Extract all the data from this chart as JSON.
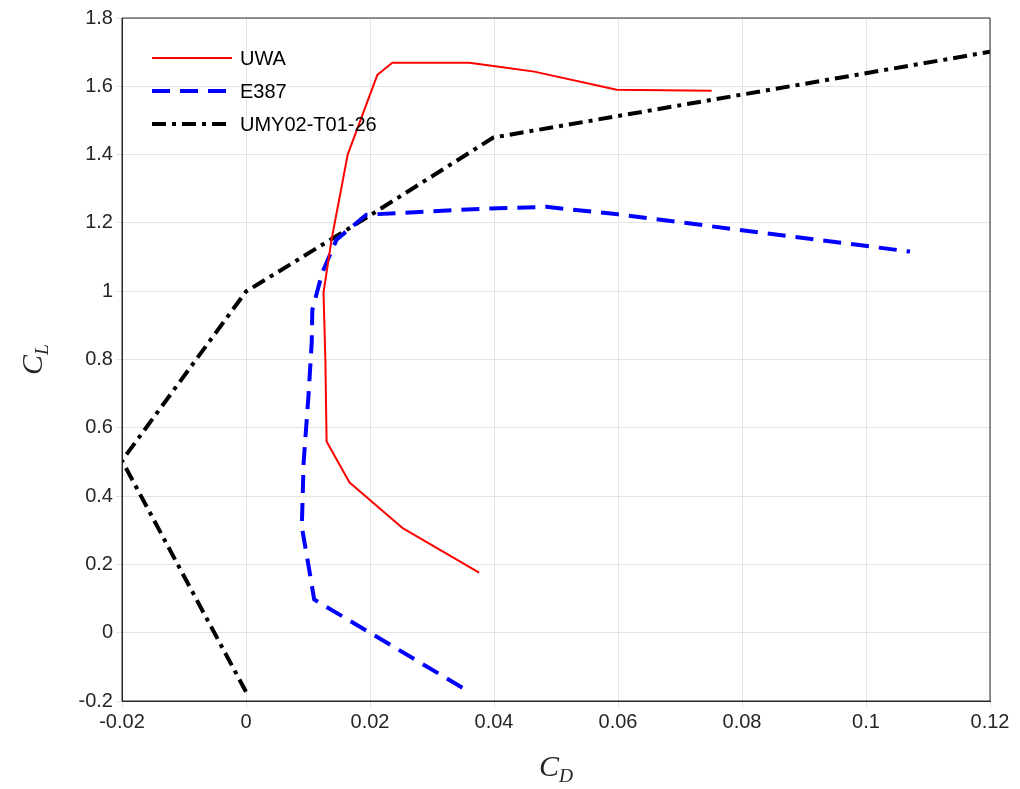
{
  "chart_data": {
    "type": "line",
    "xlabel": "C$_{D}$",
    "ylabel": "C$_{L}$",
    "xlim": [
      -0.02,
      0.12
    ],
    "xticks": [
      -0.02,
      0,
      0.02,
      0.04,
      0.06,
      0.08,
      0.1,
      0.12
    ],
    "ylim": [
      -0.2,
      1.8
    ],
    "yticks": [
      -0.2,
      0,
      0.2,
      0.4,
      0.6,
      0.8,
      1,
      1.2,
      1.4,
      1.6,
      1.8
    ],
    "grid": true,
    "legend": "top left",
    "marker": "none",
    "series": [
      {
        "name": "UWA",
        "color": "#ff0000",
        "line_style": "solid",
        "x": [
          0.0376,
          0.0252,
          0.0167,
          0.013,
          0.0128,
          0.0125,
          0.0138,
          0.0164,
          0.0212,
          0.0236,
          0.029,
          0.036,
          0.0465,
          0.0598,
          0.0751
        ],
        "values": [
          0.176,
          0.307,
          0.44,
          0.56,
          0.8,
          0.996,
          1.151,
          1.4,
          1.634,
          1.669,
          1.669,
          1.669,
          1.643,
          1.59,
          1.587
        ]
      },
      {
        "name": "E387",
        "color": "#0000ff",
        "line_style": "dashed",
        "x": [
          0.0349,
          0.011,
          0.0102,
          0.009,
          0.0093,
          0.0101,
          0.0106,
          0.0107,
          0.0123,
          0.0146,
          0.0194,
          0.0387,
          0.0484,
          0.06,
          0.1071
        ],
        "values": [
          -0.161,
          0.097,
          0.184,
          0.31,
          0.5,
          0.7,
          0.85,
          0.946,
          1.054,
          1.151,
          1.224,
          1.242,
          1.247,
          1.225,
          1.116
        ]
      },
      {
        "name": "UMY02-T01-26",
        "color": "#000000",
        "line_style": "dashdot",
        "x": [
          0,
          -0.02,
          0,
          0.0194,
          0.0399,
          0.12
        ],
        "values": [
          -0.173,
          0.504,
          0.999,
          1.215,
          1.45,
          1.701
        ]
      }
    ]
  }
}
